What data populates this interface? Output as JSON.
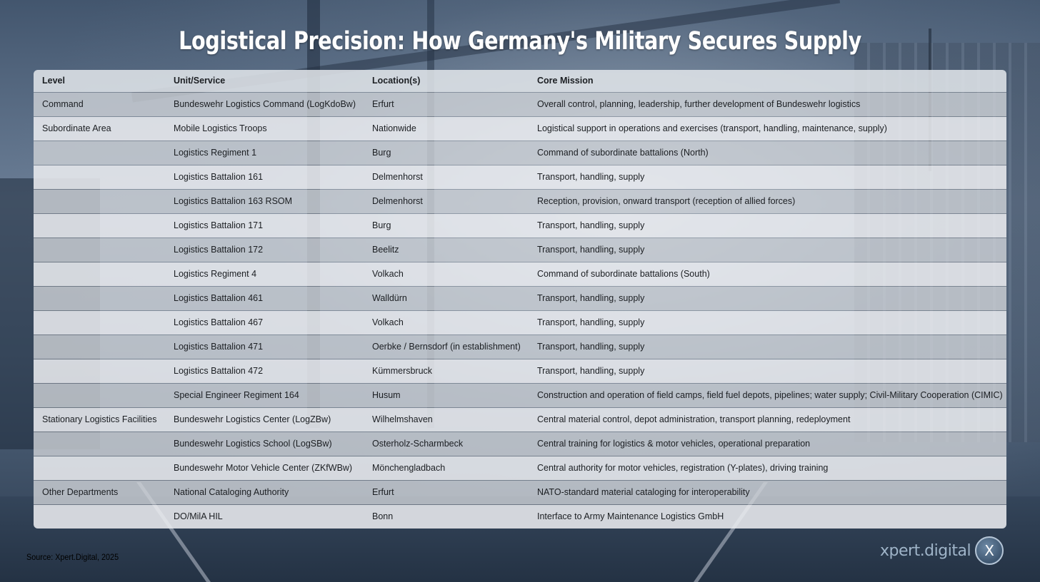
{
  "title": "Logistical Precision: How Germany's Military Secures Supply",
  "table": {
    "headers": [
      "Level",
      "Unit/Service",
      "Location(s)",
      "Core Mission"
    ],
    "rows": [
      [
        "Command",
        "Bundeswehr Logistics Command (LogKdoBw)",
        "Erfurt",
        "Overall control, planning, leadership, further development of Bundeswehr logistics"
      ],
      [
        "Subordinate Area",
        "Mobile Logistics Troops",
        "Nationwide",
        "Logistical support in operations and exercises (transport, handling, maintenance, supply)"
      ],
      [
        "",
        "Logistics Regiment 1",
        "Burg",
        "Command of subordinate battalions (North)"
      ],
      [
        "",
        "Logistics Battalion 161",
        "Delmenhorst",
        "Transport, handling, supply"
      ],
      [
        "",
        "Logistics Battalion 163 RSOM",
        "Delmenhorst",
        "Reception, provision, onward transport (reception of allied forces)"
      ],
      [
        "",
        "Logistics Battalion 171",
        "Burg",
        "Transport, handling, supply"
      ],
      [
        "",
        "Logistics Battalion 172",
        "Beelitz",
        "Transport, handling, supply"
      ],
      [
        "",
        "Logistics Regiment 4",
        "Volkach",
        "Command of subordinate battalions (South)"
      ],
      [
        "",
        "Logistics Battalion 461",
        "Walldürn",
        "Transport, handling, supply"
      ],
      [
        "",
        "Logistics Battalion 467",
        "Volkach",
        "Transport, handling, supply"
      ],
      [
        "",
        "Logistics Battalion 471",
        "Oerbke / Bernsdorf (in establishment)",
        "Transport, handling, supply"
      ],
      [
        "",
        "Logistics Battalion 472",
        "Kümmersbruck",
        "Transport, handling, supply"
      ],
      [
        "",
        "Special Engineer Regiment 164",
        "Husum",
        "Construction and operation of field camps, field fuel depots, pipelines; water supply; Civil-Military Cooperation (CIMIC)"
      ],
      [
        "Stationary Logistics Facilities",
        "Bundeswehr Logistics Center (LogZBw)",
        "Wilhelmshaven",
        "Central material control, depot administration, transport planning, redeployment"
      ],
      [
        "",
        "Bundeswehr Logistics School (LogSBw)",
        "Osterholz-Scharmbeck",
        "Central training for logistics & motor vehicles, operational preparation"
      ],
      [
        "",
        "Bundeswehr Motor Vehicle Center (ZKfWBw)",
        "Mönchengladbach",
        "Central authority for motor vehicles, registration (Y-plates), driving training"
      ],
      [
        "Other Departments",
        "National Cataloging Authority",
        "Erfurt",
        "NATO-standard material cataloging for interoperability"
      ],
      [
        "",
        "DO/MilA HIL",
        "Bonn",
        "Interface to Army Maintenance Logistics GmbH"
      ]
    ]
  },
  "source": "Source: Xpert.Digital, 2025",
  "logo": {
    "text": "xpert.digital",
    "badge": "X"
  }
}
